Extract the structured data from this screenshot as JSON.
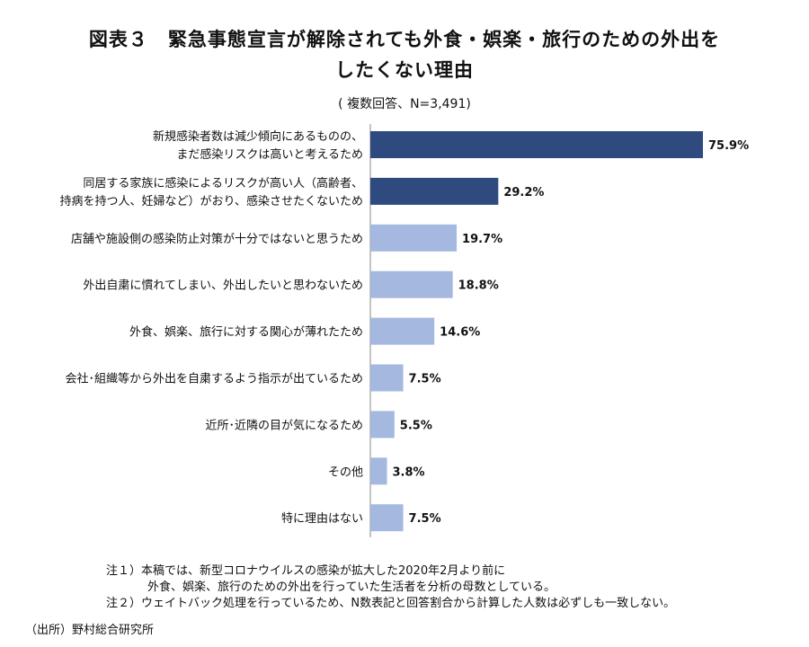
{
  "chart_data": {
    "type": "bar",
    "orientation": "horizontal",
    "title_line1": "図表３　緊急事態宣言が解除されても外食・娯楽・旅行のための外出を",
    "title_line2": "したくない理由",
    "subtitle": "( 複数回答、N=3,491)",
    "categories": [
      [
        "新規感染者数は減少傾向にあるものの、",
        "まだ感染リスクは高いと考えるため"
      ],
      [
        "同居する家族に感染によるリスクが高い人（高齢者、",
        "持病を持つ人、妊婦など）がおり、感染させたくないため"
      ],
      [
        "店舗や施設側の感染防止対策が十分ではないと思うため"
      ],
      [
        "外出自粛に慣れてしまい、外出したいと思わないため"
      ],
      [
        "外食、娯楽、旅行に対する関心が薄れたため"
      ],
      [
        "会社･組織等から外出を自粛するよう指示が出ているため"
      ],
      [
        "近所･近隣の目が気になるため"
      ],
      [
        "その他"
      ],
      [
        "特に理由はない"
      ]
    ],
    "values": [
      75.9,
      29.2,
      19.7,
      18.8,
      14.6,
      7.5,
      5.5,
      3.8,
      7.5
    ],
    "value_labels": [
      "75.9%",
      "29.2%",
      "19.7%",
      "18.8%",
      "14.6%",
      "7.5%",
      "5.5%",
      "3.8%",
      "7.5%"
    ],
    "highlight_count": 2,
    "colors": {
      "highlight": "#2E4A7E",
      "normal": "#A4B8E0",
      "axis": "#888888"
    },
    "xlim": [
      0,
      80
    ],
    "grid": false
  },
  "notes": [
    "注１）本稿では、新型コロナウイルスの感染が拡大した2020年2月より前に",
    "外食、娯楽、旅行のための外出を行っていた生活者を分析の母数としている。",
    "注２）ウェイトバック処理を行っているため、N数表記と回答割合から計算した人数は必ずしも一致しない。"
  ],
  "source": "（出所）野村総合研究所"
}
